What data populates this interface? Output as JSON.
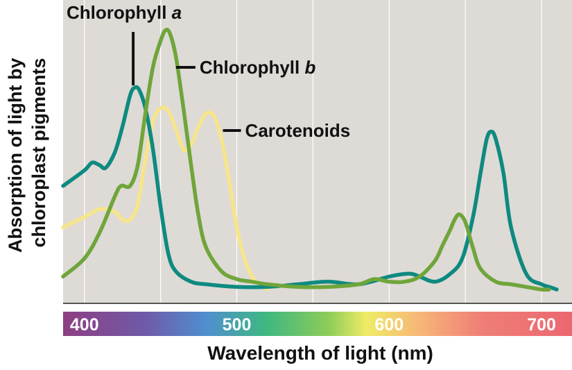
{
  "chart_data": {
    "type": "line",
    "xlabel": "Wavelength of light (nm)",
    "ylabel_lines": [
      "Absorption of light by",
      "chloroplast pigments"
    ],
    "xlim": [
      386,
      720
    ],
    "ylim": [
      0,
      100
    ],
    "x_ticks": [
      400,
      500,
      600,
      700
    ],
    "grid": true,
    "plot_background": "#dedad6",
    "grid_color": "#ffffff",
    "spectrum_bar": true,
    "spectrum_stops": [
      {
        "nm": 386,
        "color": "#8e3f82"
      },
      {
        "nm": 440,
        "color": "#6f5aa8"
      },
      {
        "nm": 480,
        "color": "#4f8fcf"
      },
      {
        "nm": 520,
        "color": "#3fb880"
      },
      {
        "nm": 560,
        "color": "#8dcc58"
      },
      {
        "nm": 585,
        "color": "#eeec66"
      },
      {
        "nm": 620,
        "color": "#f7b677"
      },
      {
        "nm": 660,
        "color": "#ef7f77"
      },
      {
        "nm": 720,
        "color": "#eb6770"
      }
    ],
    "series": [
      {
        "name": "Chlorophyll a",
        "name_plain": "Chlorophyll ",
        "name_italic": "a",
        "color": "#0e8a80",
        "x": [
          386,
          400,
          405,
          410,
          414,
          420,
          425,
          430,
          433,
          436,
          440,
          445,
          450,
          455,
          460,
          470,
          480,
          500,
          520,
          540,
          560,
          580,
          600,
          610,
          615,
          620,
          630,
          640,
          648,
          655,
          660,
          664,
          667,
          670,
          675,
          680,
          690,
          700,
          705,
          710
        ],
        "y": [
          40,
          46,
          49,
          48,
          47,
          53,
          63,
          75,
          78,
          77,
          70,
          54,
          32,
          14,
          7,
          3,
          2,
          1,
          1,
          2,
          3,
          2,
          5,
          6,
          6,
          5,
          3,
          6,
          12,
          28,
          45,
          58,
          61,
          58,
          45,
          24,
          6,
          2,
          1,
          0
        ]
      },
      {
        "name": "Chlorophyll b",
        "name_plain": "Chlorophyll ",
        "name_italic": "b",
        "color": "#6fa53a",
        "x": [
          386,
          400,
          410,
          420,
          424,
          430,
          435,
          440,
          445,
          450,
          453,
          456,
          460,
          465,
          470,
          475,
          480,
          490,
          500,
          510,
          520,
          540,
          560,
          580,
          590,
          600,
          610,
          620,
          630,
          635,
          640,
          643,
          646,
          650,
          655,
          660,
          670,
          680,
          690,
          700,
          705
        ],
        "y": [
          5,
          12,
          22,
          36,
          40,
          40,
          48,
          68,
          86,
          96,
          100,
          99,
          90,
          70,
          48,
          28,
          16,
          7,
          4,
          3,
          2,
          1,
          1,
          2,
          4,
          3,
          3,
          5,
          11,
          17,
          23,
          27,
          29,
          26,
          16,
          8,
          3,
          2,
          1,
          0,
          0
        ]
      },
      {
        "name": "Carotenoids",
        "color": "#f6e58c",
        "x": [
          386,
          400,
          410,
          420,
          425,
          430,
          435,
          440,
          445,
          450,
          455,
          460,
          465,
          470,
          475,
          480,
          485,
          490,
          495,
          500,
          505,
          510,
          515,
          520
        ],
        "y": [
          24,
          28,
          31,
          30,
          27,
          27,
          33,
          50,
          65,
          70,
          69,
          62,
          54,
          56,
          63,
          68,
          67,
          58,
          42,
          24,
          12,
          5,
          2,
          0
        ]
      }
    ],
    "labels": [
      {
        "series": 0,
        "text_plain": "Chlorophyll ",
        "text_italic": "a",
        "anchor_x": 432,
        "anchor_y": 78
      },
      {
        "series": 1,
        "text_plain": "Chlorophyll ",
        "text_italic": "b",
        "anchor_x": 461,
        "anchor_y": 90
      },
      {
        "series": 2,
        "text": "Carotenoids",
        "anchor_x": 490,
        "anchor_y": 65
      }
    ]
  }
}
